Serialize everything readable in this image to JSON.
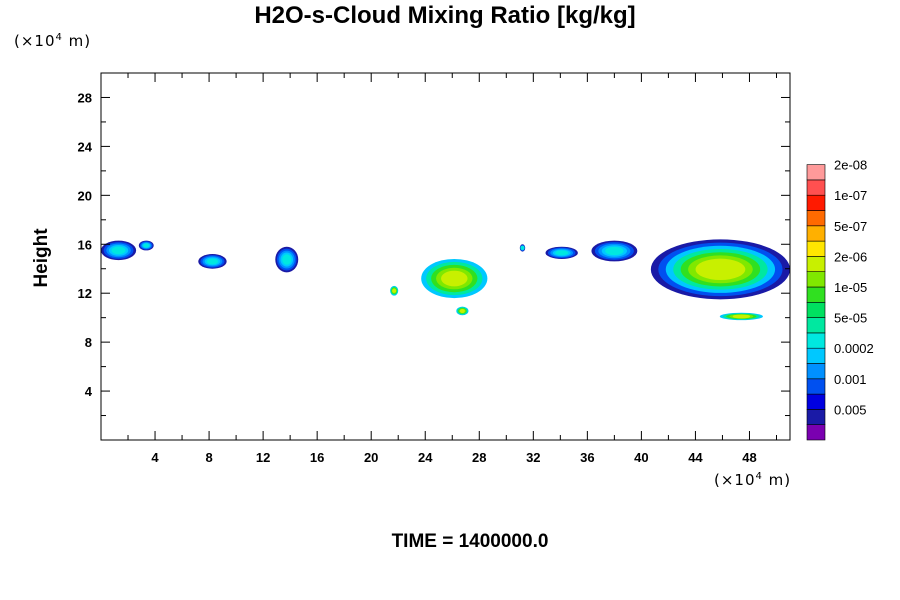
{
  "chart_data": {
    "type": "heatmap",
    "title": "H2O-s-Cloud Mixing Ratio [kg/kg]",
    "ylabel": "Height",
    "y_unit_base": "(×10",
    "y_unit_exp": "4",
    "y_unit_tail": " m)",
    "x_unit_base": "(×10",
    "x_unit_exp": "4",
    "x_unit_tail": " m)",
    "xlim": [
      0,
      51
    ],
    "ylim": [
      0,
      30
    ],
    "x_ticks": [
      4,
      8,
      12,
      16,
      20,
      24,
      28,
      32,
      36,
      40,
      44,
      48
    ],
    "x_tick_labels": [
      "4",
      "8",
      "12",
      "16",
      "20",
      "24",
      "28",
      "32",
      "36",
      "40",
      "44",
      "48"
    ],
    "y_ticks": [
      4,
      8,
      12,
      16,
      20,
      24,
      28
    ],
    "y_tick_labels": [
      "4",
      "8",
      "12",
      "16",
      "20",
      "24",
      "28"
    ],
    "colorbar": {
      "labels": [
        "0.005",
        "0.001",
        "0.0002",
        "5e-05",
        "1e-05",
        "2e-06",
        "5e-07",
        "1e-07",
        "2e-08"
      ],
      "colors": [
        "#7a00b0",
        "#1a1aa6",
        "#0000e0",
        "#0050f0",
        "#0090ff",
        "#00c8ff",
        "#00e8e0",
        "#00e8a0",
        "#00e060",
        "#30e020",
        "#80e800",
        "#c8f000",
        "#ffe600",
        "#ffb000",
        "#ff6a00",
        "#ff1a00",
        "#ff5050",
        "#ff9a9a"
      ]
    },
    "features": [
      {
        "x": [
          0,
          2.6
        ],
        "y": [
          14.7,
          16.3
        ],
        "level": "upper-anvil"
      },
      {
        "x": [
          2.8,
          3.9
        ],
        "y": [
          15.5,
          16.3
        ],
        "level": "upper-anvil"
      },
      {
        "x": [
          7.2,
          9.3
        ],
        "y": [
          14.0,
          15.2
        ],
        "level": "upper-anvil"
      },
      {
        "x": [
          12.9,
          14.6
        ],
        "y": [
          13.7,
          15.8
        ],
        "level": "upper-anvil"
      },
      {
        "x": [
          21.4,
          22.0
        ],
        "y": [
          11.8,
          12.6
        ],
        "level": "lower"
      },
      {
        "x": [
          23.7,
          28.6
        ],
        "y": [
          11.6,
          14.8
        ],
        "level": "lower"
      },
      {
        "x": [
          26.3,
          27.2
        ],
        "y": [
          10.2,
          10.9
        ],
        "level": "lower"
      },
      {
        "x": [
          31.0,
          31.4
        ],
        "y": [
          15.4,
          16.0
        ],
        "level": "upper-anvil"
      },
      {
        "x": [
          32.9,
          35.3
        ],
        "y": [
          14.8,
          15.8
        ],
        "level": "upper-anvil"
      },
      {
        "x": [
          36.3,
          39.7
        ],
        "y": [
          14.6,
          16.3
        ],
        "level": "upper-anvil"
      },
      {
        "x": [
          40.7,
          51.0
        ],
        "y": [
          11.5,
          16.4
        ],
        "level": "deep-cluster"
      },
      {
        "x": [
          45.8,
          49.0
        ],
        "y": [
          9.8,
          10.4
        ],
        "level": "lower"
      }
    ]
  },
  "time_label": "TIME = 1400000.0"
}
